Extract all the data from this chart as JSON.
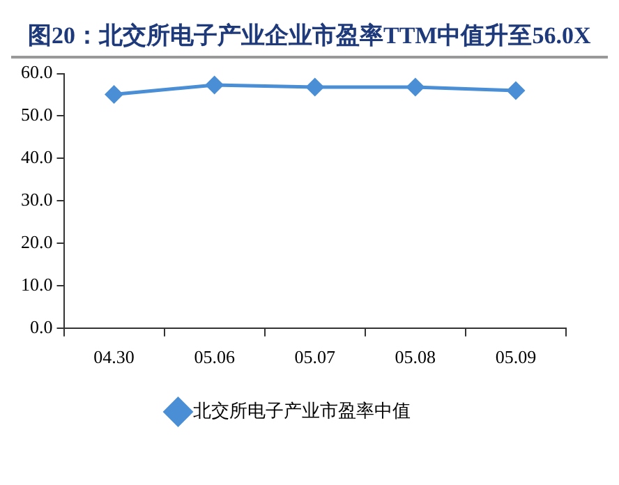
{
  "chart_data": {
    "type": "line",
    "title": "图20：北交所电子产业企业市盈率TTM中值升至56.0X",
    "categories": [
      "04.30",
      "05.06",
      "05.07",
      "05.08",
      "05.09"
    ],
    "series": [
      {
        "name": "北交所电子产业市盈率中值",
        "color": "#4a8fd6",
        "values": [
          55.1,
          57.3,
          56.8,
          56.8,
          56.0
        ]
      }
    ],
    "ylim": [
      0,
      60
    ],
    "yticks": [
      {
        "value": 0,
        "label": "0.0"
      },
      {
        "value": 10,
        "label": "10.0"
      },
      {
        "value": 20,
        "label": "20.0"
      },
      {
        "value": 30,
        "label": "30.0"
      },
      {
        "value": 40,
        "label": "40.0"
      },
      {
        "value": 50,
        "label": "50.0"
      },
      {
        "value": 60,
        "label": "60.0"
      }
    ],
    "grid": false,
    "legend": "bottom",
    "marker": "diamond",
    "line_style": "solid"
  }
}
